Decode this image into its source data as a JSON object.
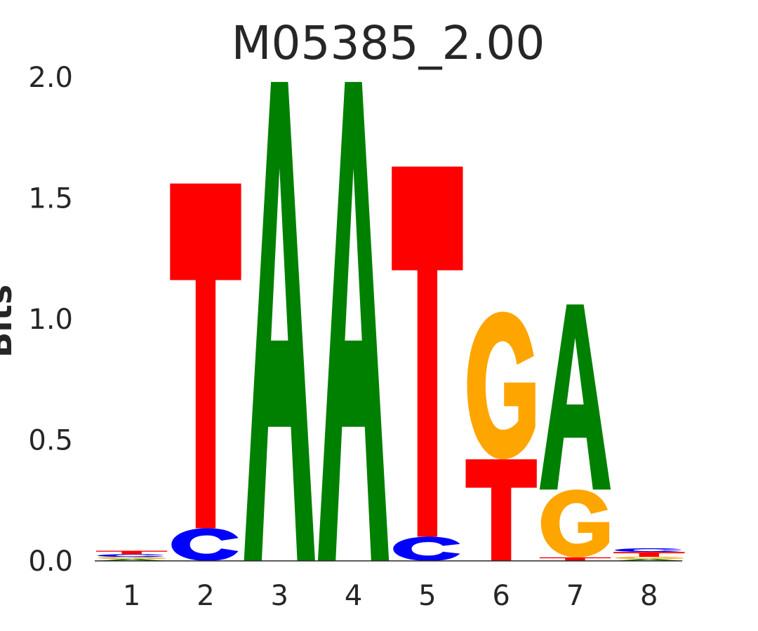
{
  "chart_data": {
    "type": "sequence-logo",
    "title": "M05385_2.00",
    "ylabel": "Bits",
    "xlabel": "",
    "ylim": [
      0,
      2
    ],
    "yticks": [
      0.0,
      0.5,
      1.0,
      1.5,
      2.0
    ],
    "ytick_labels": [
      "0.0",
      "0.5",
      "1.0",
      "1.5",
      "2.0"
    ],
    "positions": [
      "1",
      "2",
      "3",
      "4",
      "5",
      "6",
      "7",
      "8"
    ],
    "colors": {
      "A": "#008000",
      "C": "#0000ff",
      "G": "#ffa500",
      "T": "#ff0000"
    },
    "stacks": [
      [
        {
          "letter": "A",
          "bits": 0.008
        },
        {
          "letter": "G",
          "bits": 0.008
        },
        {
          "letter": "C",
          "bits": 0.012
        },
        {
          "letter": "T",
          "bits": 0.014
        }
      ],
      [
        {
          "letter": "C",
          "bits": 0.135
        },
        {
          "letter": "T",
          "bits": 1.425
        }
      ],
      [
        {
          "letter": "A",
          "bits": 1.98
        }
      ],
      [
        {
          "letter": "A",
          "bits": 1.98
        }
      ],
      [
        {
          "letter": "C",
          "bits": 0.1
        },
        {
          "letter": "T",
          "bits": 1.53
        }
      ],
      [
        {
          "letter": "T",
          "bits": 0.42
        },
        {
          "letter": "G",
          "bits": 0.61
        }
      ],
      [
        {
          "letter": "T",
          "bits": 0.015
        },
        {
          "letter": "G",
          "bits": 0.28
        },
        {
          "letter": "A",
          "bits": 0.765
        }
      ],
      [
        {
          "letter": "A",
          "bits": 0.008
        },
        {
          "letter": "G",
          "bits": 0.009
        },
        {
          "letter": "T",
          "bits": 0.02
        },
        {
          "letter": "C",
          "bits": 0.015
        }
      ]
    ]
  }
}
